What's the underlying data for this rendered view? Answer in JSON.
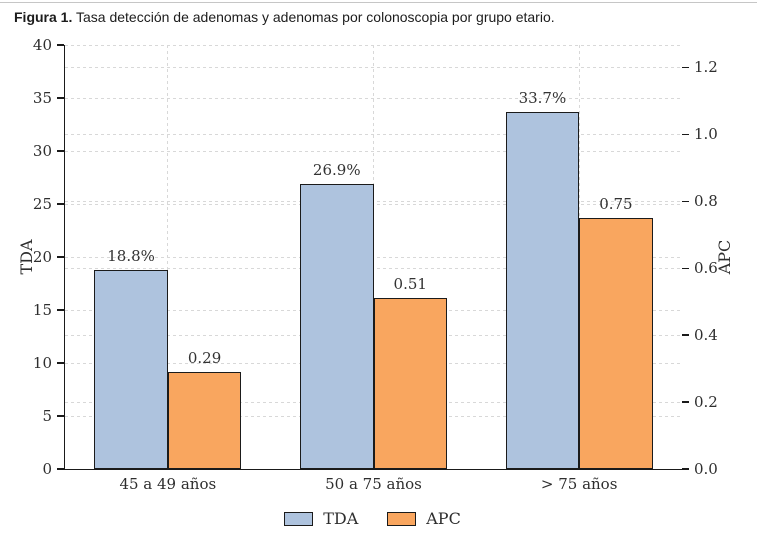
{
  "page": {
    "title_bold": "Figura 1.",
    "title_rest": " Tasa detección de adenomas y adenomas por colonoscopia por grupo etario."
  },
  "chart_data": {
    "type": "bar",
    "title": "Figura 1. Tasa detección de adenomas y adenomas por colonoscopia por grupo etario.",
    "categories": [
      "45 a 49 años",
      "50 a 75 años",
      "> 75 años"
    ],
    "series": [
      {
        "name": "TDA",
        "axis": "left",
        "values": [
          18.8,
          26.9,
          33.7
        ],
        "labels": [
          "18.8%",
          "26.9%",
          "33.7%"
        ],
        "color": "#aec3de"
      },
      {
        "name": "APC",
        "axis": "right",
        "values": [
          0.29,
          0.51,
          0.75
        ],
        "labels": [
          "0.29",
          "0.51",
          "0.75"
        ],
        "color": "#f9a65f"
      }
    ],
    "left_axis": {
      "label": "TDA",
      "tick_values": [
        0,
        5,
        10,
        15,
        20,
        25,
        30,
        35,
        40
      ],
      "tick_labels": [
        "0",
        "5",
        "10",
        "15",
        "20",
        "25",
        "30",
        "35",
        "40"
      ],
      "range": [
        0,
        40
      ]
    },
    "right_axis": {
      "label": "APC",
      "tick_values": [
        0,
        0.2,
        0.4,
        0.6,
        0.8,
        1.0,
        1.2
      ],
      "tick_labels": [
        "0.0",
        "0.2",
        "0.4",
        "0.6",
        "0.8",
        "1.0",
        "1.2"
      ],
      "range": [
        0,
        1.267
      ]
    },
    "legend": {
      "position": "bottom-center",
      "entries": [
        "TDA",
        "APC"
      ]
    },
    "grid": {
      "horizontal": "dashed, from both y-axes ticks",
      "vertical": "dashed, at category centers"
    },
    "bar_edge_color": "#1b1b1b",
    "grid_color": "#d8d8d8"
  }
}
